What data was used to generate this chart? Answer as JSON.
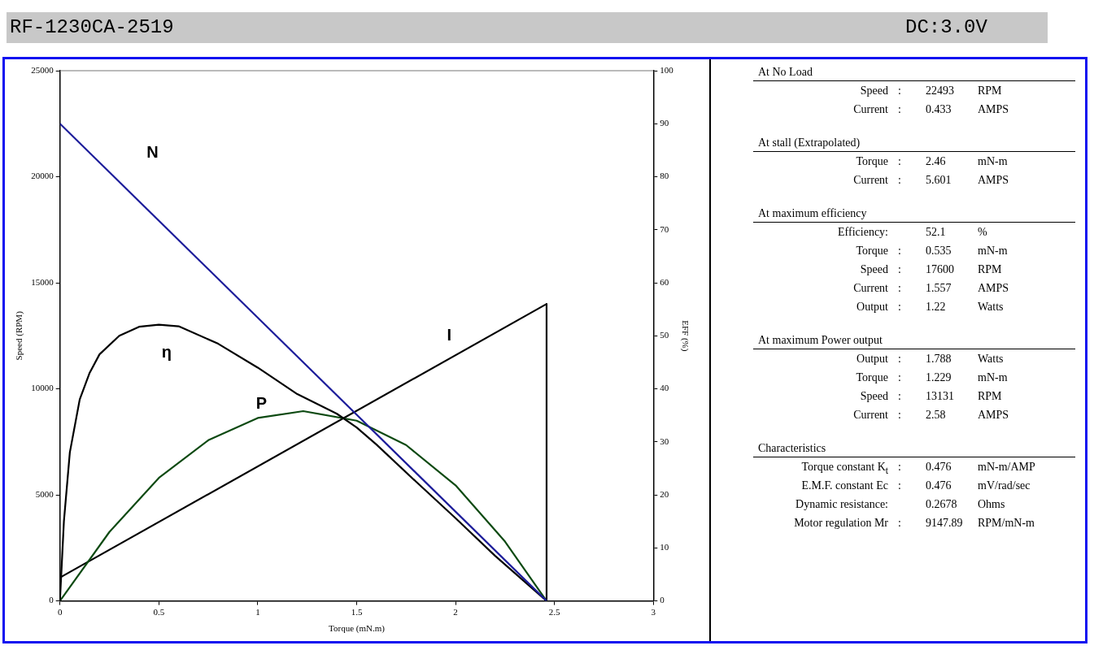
{
  "chart_data": [
    {
      "type": "line",
      "title": "RF-1230CA-2519",
      "xlabel": "Torque (mN.m)",
      "ylabel": "Speed (RPM)",
      "y2label": "EFF (%)",
      "xlim": [
        0,
        3
      ],
      "xticks": [
        0,
        0.5,
        1,
        1.5,
        2,
        2.5,
        3
      ],
      "ylim": [
        0,
        25000
      ],
      "yticks": [
        0,
        5000,
        10000,
        15000,
        20000,
        25000
      ],
      "y2lim": [
        0,
        100
      ],
      "y2ticks": [
        0,
        10,
        20,
        30,
        40,
        50,
        60,
        70,
        80,
        90,
        100
      ],
      "grid": false,
      "legend": false,
      "marker": "none",
      "line_style": "solid",
      "series": [
        {
          "name": "N",
          "color": "#1c1c9a",
          "x": [
            0,
            2.46
          ],
          "values": [
            22500,
            0
          ]
        },
        {
          "name": "η",
          "color": "#000000",
          "axis": "y2",
          "x": [
            0,
            0.02,
            0.05,
            0.1,
            0.15,
            0.2,
            0.3,
            0.4,
            0.5,
            0.6,
            0.8,
            1.0,
            1.2,
            1.4,
            1.5,
            1.6,
            1.8,
            2.0,
            2.2,
            2.46
          ],
          "values": [
            0,
            15,
            28,
            38,
            43,
            46.5,
            50,
            51.7,
            52.1,
            51.8,
            48.5,
            44,
            39,
            35.3,
            32.7,
            29.5,
            22.5,
            15.6,
            8.5,
            0
          ]
        },
        {
          "name": "P",
          "color": "#0d4a12",
          "axis": "y2",
          "x": [
            0,
            0.25,
            0.5,
            0.75,
            1.0,
            1.23,
            1.5,
            1.75,
            2.0,
            2.25,
            2.46
          ],
          "values": [
            0,
            13,
            23.2,
            30.3,
            34.5,
            35.8,
            34,
            29.4,
            21.8,
            11.2,
            0
          ]
        },
        {
          "name": "I",
          "color": "#000000",
          "axis": "y2",
          "x": [
            0,
            2.46,
            2.46
          ],
          "values": [
            4.4,
            56,
            0
          ]
        }
      ]
    },
    {
      "type": "other",
      "title": "DC:3.0V",
      "annotations": [
        "At No Load",
        "Speed\t:\t22493\tRPM",
        "Current\t:\t0.433\tAMPS",
        "At stall (Extrapolated)",
        "Torque\t:\t2.46\tmN-m",
        "Current\t:\t5.601\tAMPS",
        "At maximum efficiency",
        "Efficiency:\t\t52.1\t%",
        "Torque\t:\t0.535\tmN-m",
        "Speed\t:\t17600\tRPM",
        "Current\t:\t1.557\tAMPS",
        "Output\t:\t1.22\tWatts",
        "At maximum Power output",
        "Output\t:\t1.788\tWatts",
        "Torque\t:\t1.229\tmN-m",
        "Speed\t:\t13131\tRPM",
        "Current\t:\t2.58\tAMPS",
        "Characteristics",
        "Torque constant  K$_{t}$\t:\t0.476\tmN-m/AMP",
        "E.M.F. constant  Ec\t:\t0.476\tmV/rad/sec",
        "Dynamic resistance:\t\t0.2678\tOhms",
        "Motor regulation  Mr\t:\t9147.89\tRPM/mN-m"
      ]
    }
  ]
}
